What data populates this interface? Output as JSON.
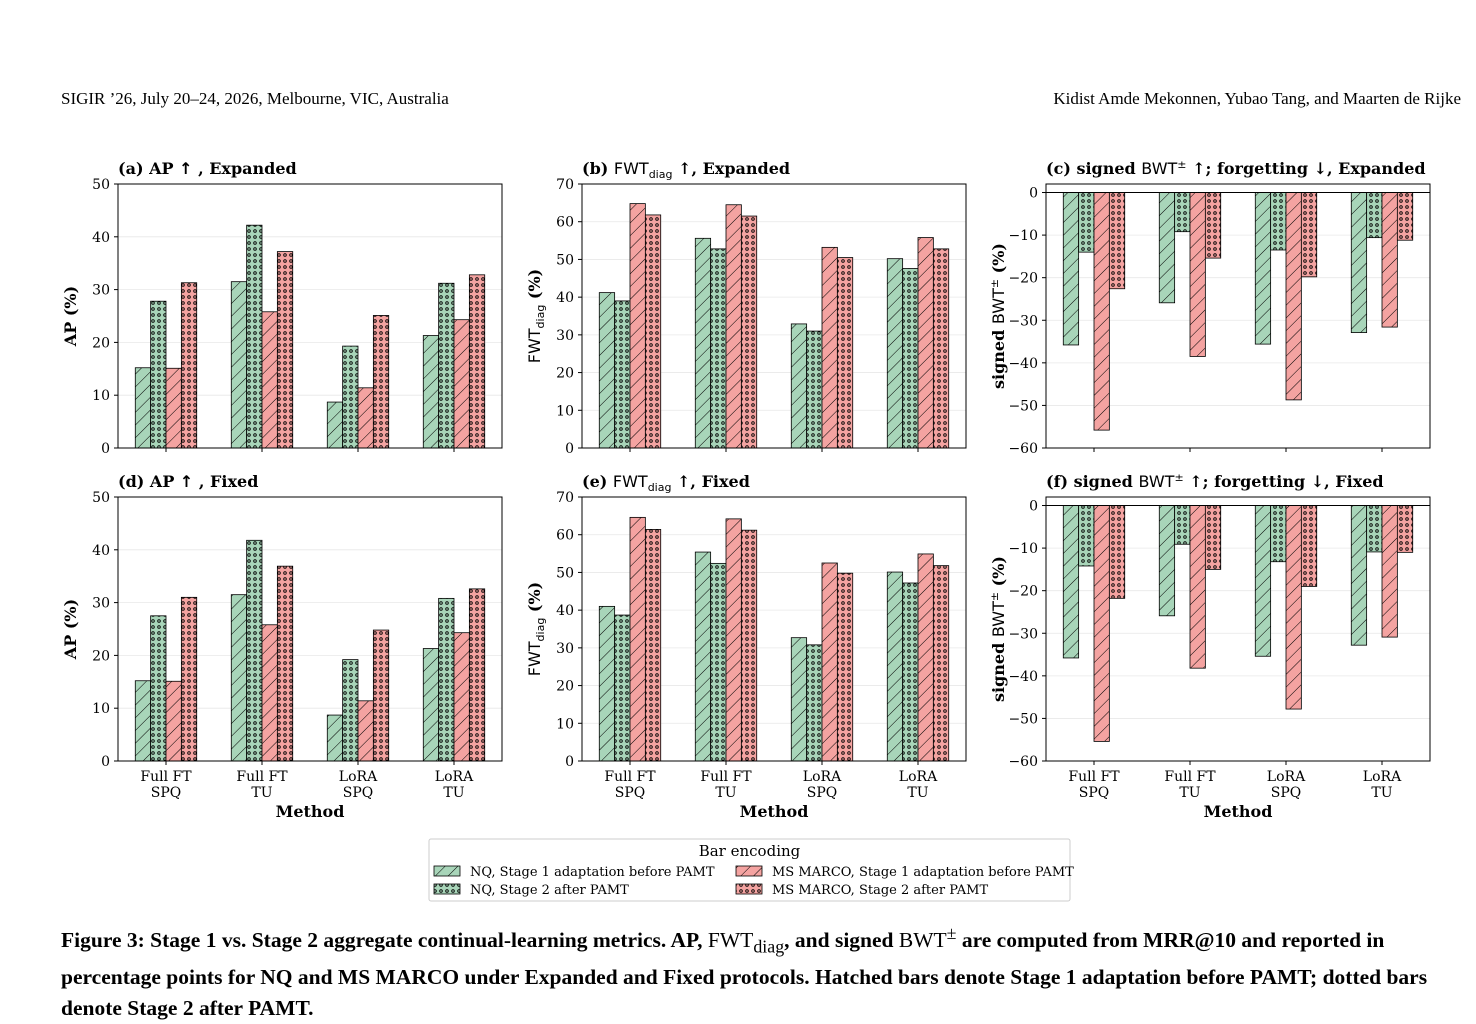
{
  "header": {
    "left": "SIGIR ’26, July 20–24, 2026, Melbourne, VIC, Australia",
    "right": "Kidist Amde Mekonnen, Yubao Tang, and Maarten de Rijke"
  },
  "colors": {
    "nq": "#a8d5b9",
    "msmarco": "#f4a3a1",
    "edge": "#000000",
    "grid": "#e8e8e8"
  },
  "chart_data": [
    {
      "panel": "a",
      "type": "bar",
      "title_parts": [
        "(a) AP ",
        "↑",
        ", Expanded"
      ],
      "ylabel": "AP (%)",
      "xlabel": "",
      "ylim": [
        0,
        50
      ],
      "yticks": [
        0,
        10,
        20,
        30,
        40,
        50
      ],
      "categories": [
        "Full FT\nSPQ",
        "Full FT\nTU",
        "LoRA\nSPQ",
        "LoRA\nTU"
      ],
      "series": [
        {
          "name": "NQ, Stage 1 adaptation before PAMT",
          "values": [
            15.2,
            31.5,
            8.7,
            21.3
          ]
        },
        {
          "name": "NQ, Stage 2 after PAMT",
          "values": [
            27.8,
            42.2,
            19.3,
            31.2
          ]
        },
        {
          "name": "MS MARCO, Stage 1 adaptation before PAMT",
          "values": [
            15.1,
            25.8,
            11.4,
            24.3
          ]
        },
        {
          "name": "MS MARCO, Stage 2 after PAMT",
          "values": [
            31.3,
            37.2,
            25.1,
            32.8
          ]
        }
      ]
    },
    {
      "panel": "b",
      "type": "bar",
      "title_parts": [
        "(b) FWT",
        "diag",
        " ↑, Expanded"
      ],
      "ylabel": "FWT",
      "ylabel_sub": "diag",
      "ylabel_suffix": " (%)",
      "xlabel": "",
      "ylim": [
        0,
        70
      ],
      "yticks": [
        0,
        10,
        20,
        30,
        40,
        50,
        60,
        70
      ],
      "categories": [
        "Full FT\nSPQ",
        "Full FT\nTU",
        "LoRA\nSPQ",
        "LoRA\nTU"
      ],
      "series": [
        {
          "name": "NQ, Stage 1 adaptation before PAMT",
          "values": [
            41.2,
            55.6,
            32.9,
            50.2
          ]
        },
        {
          "name": "NQ, Stage 2 after PAMT",
          "values": [
            39.0,
            52.8,
            31.0,
            47.6
          ]
        },
        {
          "name": "MS MARCO, Stage 1 adaptation before PAMT",
          "values": [
            64.8,
            64.5,
            53.2,
            55.8
          ]
        },
        {
          "name": "MS MARCO, Stage 2 after PAMT",
          "values": [
            61.8,
            61.5,
            50.5,
            52.8
          ]
        }
      ]
    },
    {
      "panel": "c",
      "type": "bar",
      "title_parts": [
        "(c) signed BWT",
        "±",
        " ↑; forgetting ↓, Expanded"
      ],
      "ylabel": "signed BWT",
      "ylabel_sup": "±",
      "ylabel_suffix": " (%)",
      "xlabel": "",
      "ylim": [
        -60,
        2
      ],
      "yticks": [
        0,
        -10,
        -20,
        -30,
        -40,
        -50,
        -60
      ],
      "categories": [
        "Full FT\nSPQ",
        "Full FT\nTU",
        "LoRA\nSPQ",
        "LoRA\nTU"
      ],
      "series": [
        {
          "name": "NQ, Stage 1 adaptation before PAMT",
          "values": [
            -35.8,
            -25.9,
            -35.6,
            -32.9
          ]
        },
        {
          "name": "NQ, Stage 2 after PAMT",
          "values": [
            -14.0,
            -9.2,
            -13.5,
            -10.6
          ]
        },
        {
          "name": "MS MARCO, Stage 1 adaptation before PAMT",
          "values": [
            -55.8,
            -38.5,
            -48.7,
            -31.6
          ]
        },
        {
          "name": "MS MARCO, Stage 2 after PAMT",
          "values": [
            -22.6,
            -15.4,
            -19.8,
            -11.2
          ]
        }
      ]
    },
    {
      "panel": "d",
      "type": "bar",
      "title_parts": [
        "(d) AP ",
        "↑",
        ", Fixed"
      ],
      "ylabel": "AP (%)",
      "xlabel": "Method",
      "ylim": [
        0,
        50
      ],
      "yticks": [
        0,
        10,
        20,
        30,
        40,
        50
      ],
      "categories": [
        "Full FT\nSPQ",
        "Full FT\nTU",
        "LoRA\nSPQ",
        "LoRA\nTU"
      ],
      "series": [
        {
          "name": "NQ, Stage 1 adaptation before PAMT",
          "values": [
            15.2,
            31.5,
            8.7,
            21.3
          ]
        },
        {
          "name": "NQ, Stage 2 after PAMT",
          "values": [
            27.5,
            41.8,
            19.2,
            30.8
          ]
        },
        {
          "name": "MS MARCO, Stage 1 adaptation before PAMT",
          "values": [
            15.1,
            25.8,
            11.4,
            24.3
          ]
        },
        {
          "name": "MS MARCO, Stage 2 after PAMT",
          "values": [
            31.0,
            36.9,
            24.8,
            32.6
          ]
        }
      ]
    },
    {
      "panel": "e",
      "type": "bar",
      "title_parts": [
        "(e) FWT",
        "diag",
        " ↑, Fixed"
      ],
      "ylabel": "FWT",
      "ylabel_sub": "diag",
      "ylabel_suffix": " (%)",
      "xlabel": "Method",
      "ylim": [
        0,
        70
      ],
      "yticks": [
        0,
        10,
        20,
        30,
        40,
        50,
        60,
        70
      ],
      "categories": [
        "Full FT\nSPQ",
        "Full FT\nTU",
        "LoRA\nSPQ",
        "LoRA\nTU"
      ],
      "series": [
        {
          "name": "NQ, Stage 1 adaptation before PAMT",
          "values": [
            41.0,
            55.4,
            32.7,
            50.1
          ]
        },
        {
          "name": "NQ, Stage 2 after PAMT",
          "values": [
            38.7,
            52.4,
            30.8,
            47.2
          ]
        },
        {
          "name": "MS MARCO, Stage 1 adaptation before PAMT",
          "values": [
            64.6,
            64.2,
            52.5,
            54.9
          ]
        },
        {
          "name": "MS MARCO, Stage 2 after PAMT",
          "values": [
            61.4,
            61.2,
            49.8,
            51.8
          ]
        }
      ]
    },
    {
      "panel": "f",
      "type": "bar",
      "title_parts": [
        "(f) signed BWT",
        "±",
        " ↑; forgetting ↓, Fixed"
      ],
      "ylabel": "signed BWT",
      "ylabel_sup": "±",
      "ylabel_suffix": " (%)",
      "xlabel": "Method",
      "ylim": [
        -60,
        2
      ],
      "yticks": [
        0,
        -10,
        -20,
        -30,
        -40,
        -50,
        -60
      ],
      "categories": [
        "Full FT\nSPQ",
        "Full FT\nTU",
        "LoRA\nSPQ",
        "LoRA\nTU"
      ],
      "series": [
        {
          "name": "NQ, Stage 1 adaptation before PAMT",
          "values": [
            -35.8,
            -25.9,
            -35.4,
            -32.8
          ]
        },
        {
          "name": "NQ, Stage 2 after PAMT",
          "values": [
            -14.2,
            -9.1,
            -13.2,
            -10.9
          ]
        },
        {
          "name": "MS MARCO, Stage 1 adaptation before PAMT",
          "values": [
            -55.4,
            -38.2,
            -47.8,
            -30.9
          ]
        },
        {
          "name": "MS MARCO, Stage 2 after PAMT",
          "values": [
            -21.8,
            -15.0,
            -19.0,
            -11.0
          ]
        }
      ]
    }
  ],
  "legend": {
    "title": "Bar encoding",
    "items": [
      {
        "label": "NQ, Stage 1 adaptation before PAMT",
        "color": "nq",
        "pattern": "hatch"
      },
      {
        "label": "MS MARCO, Stage 1 adaptation before PAMT",
        "color": "msmarco",
        "pattern": "hatch"
      },
      {
        "label": "NQ, Stage 2 after PAMT",
        "color": "nq",
        "pattern": "dots"
      },
      {
        "label": "MS MARCO, Stage 2 after PAMT",
        "color": "msmarco",
        "pattern": "dots"
      }
    ]
  },
  "caption": {
    "label": "Figure 3: Stage 1 vs. Stage 2 aggregate continual-learning metrics. AP, ",
    "fwt": "FWT",
    "fwt_sub": "diag",
    "mid": ", and signed ",
    "bwt": "BWT",
    "bwt_sup": "±",
    "rest": " are computed from MRR@10 and reported in percentage points for NQ and MS MARCO under Expanded and Fixed protocols. Hatched bars denote Stage 1 adaptation before PAMT; dotted bars denote Stage 2 after PAMT."
  }
}
